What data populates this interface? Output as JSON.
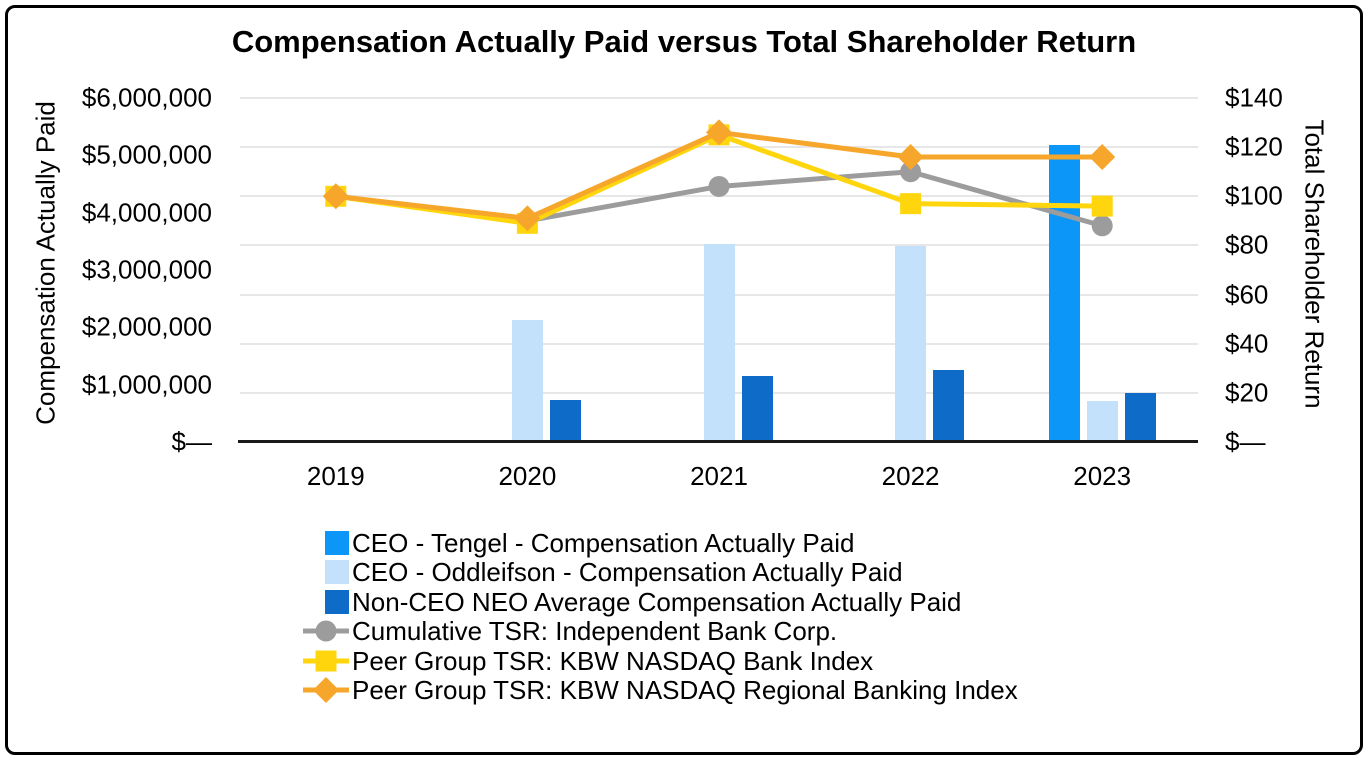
{
  "chart_data": {
    "type": "combo-bar-line",
    "title": "Compensation Actually Paid versus Total Shareholder Return",
    "categories": [
      "2019",
      "2020",
      "2021",
      "2022",
      "2023"
    ],
    "left_axis": {
      "title": "Compensation Actually Paid",
      "min": 0,
      "max": 6000000,
      "tick_labels": [
        "$6,000,000",
        "$5,000,000",
        "$4,000,000",
        "$3,000,000",
        "$2,000,000",
        "$1,000,000",
        "$—"
      ]
    },
    "right_axis": {
      "title": "Total Shareholder Return",
      "min": 0,
      "max": 140,
      "tick_labels": [
        "$140",
        "$120",
        "$100",
        "$80",
        "$60",
        "$40",
        "$20",
        "$—"
      ]
    },
    "bar_series": [
      {
        "name": "CEO - Tengel - Compensation Actually Paid",
        "color": "#0c96f8",
        "values": [
          null,
          null,
          null,
          null,
          5180000
        ]
      },
      {
        "name": "CEO - Oddleifson - Compensation Actually Paid",
        "color": "#c3e1fa",
        "values": [
          null,
          2120000,
          3460000,
          3420000,
          710000
        ]
      },
      {
        "name": "Non-CEO NEO Average Compensation Actually Paid",
        "color": "#0e6bc8",
        "values": [
          null,
          740000,
          1150000,
          1250000,
          850000
        ]
      }
    ],
    "line_series": [
      {
        "name": "Cumulative TSR: Independent Bank Corp.",
        "color": "#9c9c9c",
        "marker": "circle",
        "values": [
          100,
          90,
          104,
          110,
          88
        ]
      },
      {
        "name": "Peer Group TSR: KBW NASDAQ Bank Index",
        "color": "#ffd60e",
        "marker": "square",
        "values": [
          100,
          89,
          125,
          97,
          96
        ]
      },
      {
        "name": "Peer Group TSR: KBW NASDAQ Regional Banking Index",
        "color": "#f6a62a",
        "marker": "diamond",
        "values": [
          100,
          91,
          126,
          116,
          116
        ]
      }
    ],
    "grid": true,
    "legend_position": "bottom-left",
    "colors": {
      "gridline": "#e7e7e7",
      "axis_line": "#1a1a1a",
      "text": "#000000",
      "background": "#ffffff"
    }
  }
}
